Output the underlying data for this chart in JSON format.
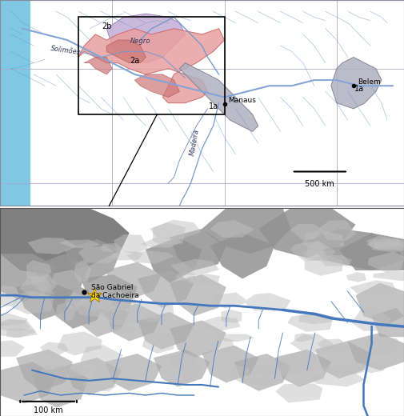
{
  "fig_width": 5.05,
  "fig_height": 5.2,
  "dpi": 100,
  "top_panel": {
    "bg_color": "#ffffff",
    "ocean_color": "#7ec8e3",
    "land_color": "#ffffff",
    "river_color": "#7799cc",
    "grid_color": "#aaaacc",
    "podzol_pink_color": "#e8a0a0",
    "podzol_lavender_color": "#c4b0d8",
    "podzol_gray_color": "#b0b0c0",
    "scale_bar_label": "500 km"
  },
  "bottom_panel": {
    "bg_color": "#ffffff",
    "highland_color": "#a8a8a8",
    "river_color": "#4477bb",
    "scale_bar_label": "100 km",
    "city_label": "São Gabriel\nda Cachoeira",
    "star_color": "#FFD700"
  }
}
